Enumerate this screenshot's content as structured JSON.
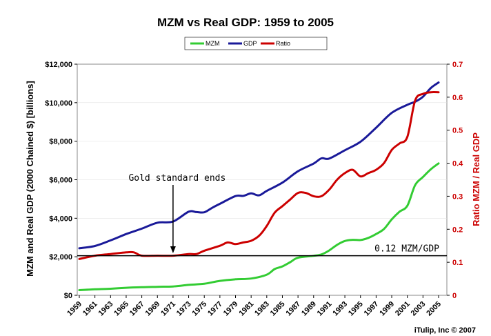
{
  "chart_data": {
    "type": "line",
    "title": "MZM vs Real GDP: 1959 to 2005",
    "ylabel": "MZM and Real GDP (2000 Chained $) [billions]",
    "y2label": "Ratio MZM / Real GDP",
    "ylim": [
      0,
      12000
    ],
    "y2lim": [
      0,
      0.7
    ],
    "xlim": [
      1959,
      2005
    ],
    "x_ticks": [
      "1959",
      "1961",
      "1963",
      "1965",
      "1967",
      "1969",
      "1971",
      "1973",
      "1975",
      "1977",
      "1979",
      "1981",
      "1983",
      "1985",
      "1987",
      "1989",
      "1991",
      "1993",
      "1995",
      "1997",
      "1999",
      "2001",
      "2003",
      "2005"
    ],
    "y_ticks": [
      "$0",
      "$2,000",
      "$4,000",
      "$6,000",
      "$8,000",
      "$10,000",
      "$12,000"
    ],
    "y2_ticks": [
      "0",
      "0.1",
      "0.2",
      "0.3",
      "0.4",
      "0.5",
      "0.6",
      "0.7"
    ],
    "legend": {
      "placement": "top"
    },
    "series": [
      {
        "name": "MZM",
        "axis": "left",
        "color": "#33cc33",
        "x": [
          1959,
          1961,
          1963,
          1965,
          1967,
          1969,
          1971,
          1973,
          1975,
          1977,
          1979,
          1981,
          1983,
          1984,
          1985,
          1986,
          1987,
          1989,
          1990,
          1991,
          1992,
          1993,
          1994,
          1995,
          1996,
          1997,
          1998,
          1999,
          2000,
          2001,
          2002,
          2003,
          2004,
          2005
        ],
        "values": [
          270,
          310,
          340,
          390,
          420,
          440,
          460,
          540,
          600,
          750,
          830,
          870,
          1070,
          1360,
          1500,
          1720,
          1950,
          2050,
          2120,
          2330,
          2620,
          2820,
          2880,
          2870,
          2980,
          3180,
          3440,
          3940,
          4340,
          4650,
          5720,
          6140,
          6540,
          6850
        ]
      },
      {
        "name": "GDP",
        "axis": "left",
        "color": "#1a1a99",
        "x": [
          1959,
          1961,
          1963,
          1965,
          1967,
          1969,
          1971,
          1973,
          1974,
          1975,
          1976,
          1977,
          1979,
          1980,
          1981,
          1982,
          1983,
          1985,
          1987,
          1989,
          1990,
          1991,
          1993,
          1995,
          1997,
          1999,
          2001,
          2002,
          2003,
          2004,
          2005
        ],
        "values": [
          2440,
          2560,
          2850,
          3180,
          3460,
          3770,
          3830,
          4340,
          4320,
          4310,
          4540,
          4750,
          5150,
          5160,
          5290,
          5190,
          5420,
          5850,
          6440,
          6840,
          7110,
          7100,
          7530,
          7970,
          8700,
          9470,
          9890,
          10050,
          10310,
          10760,
          11050
        ]
      },
      {
        "name": "Ratio",
        "axis": "right",
        "color": "#cc0000",
        "x": [
          1959,
          1961,
          1963,
          1965,
          1966,
          1967,
          1969,
          1971,
          1973,
          1974,
          1975,
          1977,
          1978,
          1979,
          1980,
          1981,
          1982,
          1983,
          1984,
          1985,
          1986,
          1987,
          1988,
          1989,
          1990,
          1991,
          1992,
          1993,
          1994,
          1995,
          1996,
          1997,
          1998,
          1999,
          2000,
          2001,
          2002,
          2003,
          2004,
          2005
        ],
        "values": [
          0.11,
          0.12,
          0.125,
          0.13,
          0.13,
          0.12,
          0.12,
          0.12,
          0.125,
          0.125,
          0.135,
          0.15,
          0.16,
          0.155,
          0.16,
          0.165,
          0.18,
          0.21,
          0.25,
          0.27,
          0.29,
          0.31,
          0.31,
          0.3,
          0.3,
          0.32,
          0.35,
          0.37,
          0.38,
          0.36,
          0.37,
          0.38,
          0.4,
          0.44,
          0.46,
          0.48,
          0.59,
          0.61,
          0.615,
          0.615
        ]
      }
    ],
    "annotations": [
      {
        "text": "Gold standard ends",
        "x": 1971
      },
      {
        "text": "0.12 MZM/GDP",
        "y2": 0.12
      }
    ],
    "credit": "iTulip, Inc © 2007"
  }
}
